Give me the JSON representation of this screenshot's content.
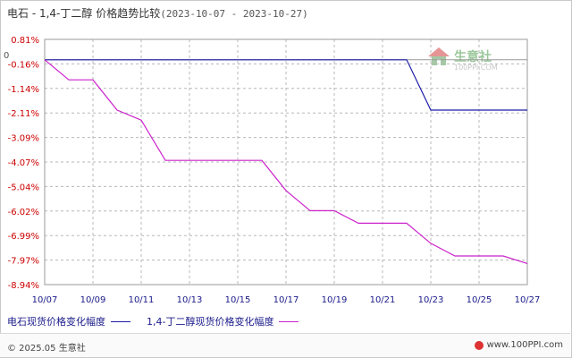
{
  "header": {
    "title": "电石 - 1,4-丁二醇 价格趋势比较",
    "date_range": "(2023-10-07 - 2023-10-27)"
  },
  "footer": {
    "copyright": "© 2025.05 生意社",
    "site": "www.100PPI.com"
  },
  "watermark": {
    "name": "生意社",
    "url": "100PPI.COM"
  },
  "colors": {
    "series1": "#1c1ca8",
    "series2": "#cc22cc",
    "grid": "#b8b8b8",
    "axis_text": "#cc0000",
    "x_text": "#1a1a8a"
  },
  "chart_data": {
    "type": "line",
    "title": "电石 - 1,4-丁二醇 价格趋势比较",
    "xlabel": "",
    "ylabel": "",
    "x_ticks": [
      "10/07",
      "10/09",
      "10/11",
      "10/13",
      "10/15",
      "10/17",
      "10/19",
      "10/21",
      "10/23",
      "10/25",
      "10/27"
    ],
    "y_ticks": [
      "0.81%",
      "-0.16%",
      "-1.14%",
      "-2.11%",
      "-3.09%",
      "-4.07%",
      "-5.04%",
      "-6.02%",
      "-6.99%",
      "-7.97%",
      "-8.94%"
    ],
    "ylim": [
      -8.94,
      0.81
    ],
    "zero_label": "0",
    "grid": true,
    "legend_position": "bottom",
    "x": [
      "10/07",
      "10/08",
      "10/09",
      "10/10",
      "10/11",
      "10/12",
      "10/13",
      "10/14",
      "10/15",
      "10/16",
      "10/17",
      "10/18",
      "10/19",
      "10/20",
      "10/21",
      "10/22",
      "10/23",
      "10/24",
      "10/25",
      "10/26",
      "10/27"
    ],
    "series": [
      {
        "name": "电石现货价格变化幅度",
        "values": [
          0,
          0,
          0,
          0,
          0,
          0,
          0,
          0,
          0,
          0,
          0,
          0,
          0,
          0,
          0,
          0,
          -2.0,
          -2.0,
          -2.0,
          -2.0,
          -2.0
        ]
      },
      {
        "name": "1,4-丁二醇现货价格变化幅度",
        "values": [
          0,
          -0.8,
          -0.8,
          -2.0,
          -2.4,
          -4.0,
          -4.0,
          -4.0,
          -4.0,
          -4.0,
          -5.2,
          -6.0,
          -6.0,
          -6.5,
          -6.5,
          -6.5,
          -7.3,
          -7.8,
          -7.8,
          -7.8,
          -8.1
        ]
      }
    ]
  }
}
